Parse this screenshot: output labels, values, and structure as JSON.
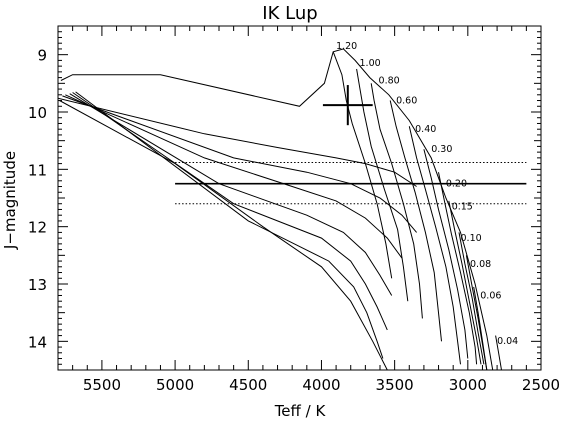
{
  "chart_data": {
    "type": "line",
    "title": "IK Lup",
    "xlabel": "Teff / K",
    "ylabel": "J−magnitude",
    "xlim": [
      5800,
      2500
    ],
    "ylim": [
      14.5,
      8.5
    ],
    "xticks": [
      5500,
      5000,
      4500,
      4000,
      3500,
      3000,
      2500
    ],
    "yticks": [
      9,
      10,
      11,
      12,
      13,
      14
    ],
    "isochrones": [
      [
        [
          5800,
          9.76
        ],
        [
          4800,
          10.38
        ],
        [
          4300,
          10.62
        ],
        [
          3900,
          10.8
        ],
        [
          3700,
          10.9
        ],
        [
          3500,
          11.05
        ],
        [
          3350,
          11.3
        ]
      ],
      [
        [
          5770,
          9.72
        ],
        [
          4600,
          10.8
        ],
        [
          4100,
          11.05
        ],
        [
          3800,
          11.25
        ],
        [
          3600,
          11.5
        ],
        [
          3450,
          11.8
        ],
        [
          3350,
          12.1
        ]
      ],
      [
        [
          5750,
          9.7
        ],
        [
          4800,
          10.8
        ],
        [
          4200,
          11.3
        ],
        [
          3900,
          11.55
        ],
        [
          3700,
          11.85
        ],
        [
          3550,
          12.2
        ],
        [
          3450,
          12.55
        ]
      ],
      [
        [
          5720,
          9.68
        ],
        [
          4700,
          11.25
        ],
        [
          4100,
          11.8
        ],
        [
          3850,
          12.1
        ],
        [
          3700,
          12.45
        ],
        [
          3600,
          12.85
        ],
        [
          3520,
          13.2
        ]
      ],
      [
        [
          5700,
          9.66
        ],
        [
          4600,
          11.6
        ],
        [
          4000,
          12.2
        ],
        [
          3800,
          12.6
        ],
        [
          3700,
          13.0
        ],
        [
          3620,
          13.4
        ],
        [
          3550,
          13.8
        ]
      ],
      [
        [
          5680,
          9.65
        ],
        [
          4500,
          11.9
        ],
        [
          3950,
          12.6
        ],
        [
          3780,
          13.05
        ],
        [
          3690,
          13.5
        ],
        [
          3620,
          14.0
        ],
        [
          3580,
          14.3
        ]
      ]
    ],
    "mass_tracks": [
      {
        "name": "1.20",
        "points": [
          [
            3920,
            8.95
          ],
          [
            3860,
            9.35
          ],
          [
            3830,
            9.8
          ],
          [
            3790,
            10.2
          ],
          [
            3700,
            10.9
          ],
          [
            3620,
            11.6
          ],
          [
            3560,
            12.3
          ],
          [
            3520,
            12.9
          ]
        ]
      },
      {
        "name": "1.00",
        "points": [
          [
            3760,
            9.25
          ],
          [
            3740,
            9.55
          ],
          [
            3710,
            10.0
          ],
          [
            3660,
            10.6
          ],
          [
            3570,
            11.35
          ],
          [
            3480,
            12.05
          ],
          [
            3440,
            12.7
          ],
          [
            3410,
            13.3
          ]
        ]
      },
      {
        "name": "0.80",
        "points": [
          [
            3660,
            9.5
          ],
          [
            3640,
            9.8
          ],
          [
            3600,
            10.3
          ],
          [
            3520,
            10.9
          ],
          [
            3440,
            11.6
          ],
          [
            3370,
            12.3
          ],
          [
            3330,
            13.0
          ],
          [
            3310,
            13.6
          ]
        ]
      },
      {
        "name": "0.60",
        "points": [
          [
            3530,
            9.8
          ],
          [
            3490,
            10.25
          ],
          [
            3430,
            10.8
          ],
          [
            3360,
            11.4
          ],
          [
            3290,
            12.1
          ],
          [
            3230,
            12.8
          ],
          [
            3200,
            13.5
          ],
          [
            3180,
            14.0
          ]
        ]
      },
      {
        "name": "0.40",
        "points": [
          [
            3400,
            10.25
          ],
          [
            3350,
            10.8
          ],
          [
            3290,
            11.35
          ],
          [
            3220,
            12.0
          ],
          [
            3150,
            12.7
          ],
          [
            3100,
            13.4
          ],
          [
            3070,
            14.0
          ],
          [
            3050,
            14.4
          ]
        ]
      },
      {
        "name": "0.30",
        "points": [
          [
            3300,
            10.65
          ],
          [
            3250,
            11.15
          ],
          [
            3200,
            11.7
          ],
          [
            3130,
            12.4
          ],
          [
            3070,
            13.1
          ],
          [
            3020,
            13.8
          ],
          [
            3000,
            14.3
          ]
        ]
      },
      {
        "name": "0.20",
        "points": [
          [
            3200,
            11.05
          ],
          [
            3160,
            11.55
          ],
          [
            3110,
            12.15
          ],
          [
            3050,
            12.8
          ],
          [
            2990,
            13.5
          ],
          [
            2950,
            14.1
          ],
          [
            2940,
            14.4
          ]
        ]
      },
      {
        "name": "0.15",
        "points": [
          [
            3130,
            11.55
          ],
          [
            3090,
            12.05
          ],
          [
            3040,
            12.65
          ],
          [
            2990,
            13.3
          ],
          [
            2940,
            13.95
          ],
          [
            2910,
            14.4
          ]
        ]
      },
      {
        "name": "0.10",
        "points": [
          [
            3060,
            12.1
          ],
          [
            3020,
            12.65
          ],
          [
            2970,
            13.25
          ],
          [
            2930,
            13.85
          ],
          [
            2890,
            14.4
          ]
        ]
      },
      {
        "name": "0.08",
        "points": [
          [
            3010,
            12.5
          ],
          [
            2970,
            13.05
          ],
          [
            2930,
            13.6
          ],
          [
            2890,
            14.2
          ],
          [
            2870,
            14.5
          ]
        ]
      },
      {
        "name": "0.06",
        "points": [
          [
            2960,
            13.05
          ],
          [
            2930,
            13.5
          ],
          [
            2900,
            14.0
          ],
          [
            2870,
            14.5
          ]
        ]
      },
      {
        "name": "0.04",
        "points": [
          [
            2810,
            13.9
          ],
          [
            2790,
            14.2
          ],
          [
            2770,
            14.5
          ]
        ]
      }
    ],
    "envelope": [
      [
        5780,
        9.45
      ],
      [
        5700,
        9.35
      ],
      [
        5100,
        9.35
      ],
      [
        4150,
        9.9
      ],
      [
        3980,
        9.5
      ],
      [
        3920,
        8.95
      ],
      [
        3850,
        8.9
      ],
      [
        3770,
        9.1
      ],
      [
        3670,
        9.4
      ],
      [
        3540,
        9.7
      ],
      [
        3400,
        10.15
      ],
      [
        3250,
        10.8
      ],
      [
        3150,
        11.5
      ],
      [
        3050,
        12.1
      ],
      [
        2950,
        13.0
      ],
      [
        2870,
        13.9
      ],
      [
        2830,
        14.5
      ]
    ],
    "lower_boundary": [
      [
        5790,
        9.8
      ],
      [
        5000,
        10.9
      ],
      [
        4400,
        12.0
      ],
      [
        4000,
        12.7
      ],
      [
        3800,
        13.3
      ],
      [
        3650,
        14.0
      ],
      [
        3550,
        14.5
      ]
    ],
    "hlines": [
      {
        "y": 11.25,
        "style": "solid",
        "xrange": [
          5000,
          2600
        ]
      },
      {
        "y": 10.88,
        "style": "dotted",
        "xrange": [
          5000,
          2600
        ]
      },
      {
        "y": 11.6,
        "style": "dotted",
        "xrange": [
          5000,
          2600
        ]
      }
    ],
    "data_point": {
      "teff": 3820,
      "teff_err_low": 3650,
      "teff_err_high": 3990,
      "j": 9.88,
      "j_err": 0.35
    },
    "mass_labels": [
      {
        "text": "1.20",
        "x": 3900,
        "y": 8.9
      },
      {
        "text": "1.00",
        "x": 3740,
        "y": 9.2
      },
      {
        "text": "0.80",
        "x": 3610,
        "y": 9.5
      },
      {
        "text": "0.60",
        "x": 3490,
        "y": 9.85
      },
      {
        "text": "0.40",
        "x": 3360,
        "y": 10.35
      },
      {
        "text": "0.30",
        "x": 3250,
        "y": 10.7
      },
      {
        "text": "0.20",
        "x": 3150,
        "y": 11.3
      },
      {
        "text": "0.15",
        "x": 3110,
        "y": 11.7
      },
      {
        "text": "0.10",
        "x": 3050,
        "y": 12.25
      },
      {
        "text": "0.08",
        "x": 2985,
        "y": 12.7
      },
      {
        "text": "0.06",
        "x": 2915,
        "y": 13.25
      },
      {
        "text": "0.04",
        "x": 2800,
        "y": 14.05
      }
    ],
    "grid": false,
    "legend": "none"
  }
}
